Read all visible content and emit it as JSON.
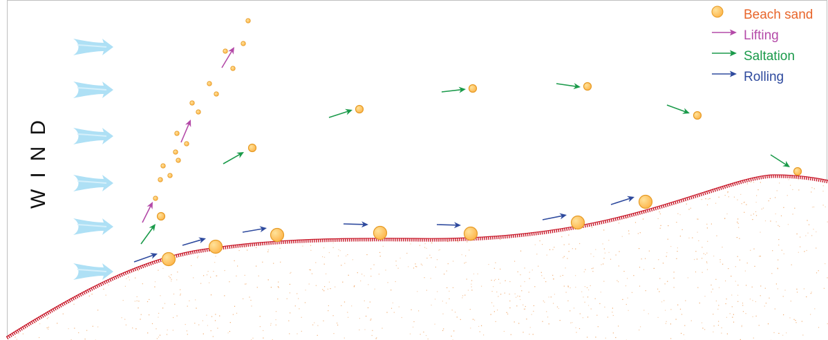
{
  "wind_label": "WIND",
  "legend": {
    "beach_sand": "Beach sand",
    "lifting": "Lifting",
    "saltation": "Saltation",
    "rolling": "Rolling"
  },
  "colors": {
    "sand_fill": "#fdbf5a",
    "sand_stroke": "#e69a24",
    "lifting": "#b44aa8",
    "saltation": "#1a9a4a",
    "rolling": "#2e4a9e",
    "wind": "#aee0f5",
    "ground_line": "#c8192a",
    "ground_dots": "#f0a05a",
    "legend_beach": "#e8652a"
  },
  "icons": {
    "wind": "wind-arrow-icon",
    "sand": "sand-grain-icon",
    "arrow": "arrow-right-icon"
  }
}
